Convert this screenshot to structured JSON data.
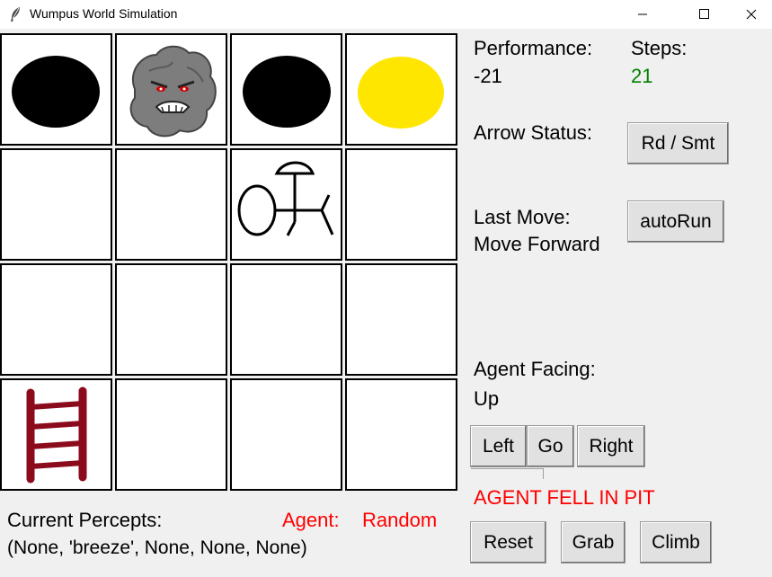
{
  "window": {
    "title": "Wumpus World Simulation",
    "controls": [
      "minimize-icon",
      "maximize-icon",
      "close-icon"
    ]
  },
  "grid": {
    "rows": 4,
    "cols": 4,
    "cells": [
      [
        "pit",
        "wumpus",
        "pit",
        "gold"
      ],
      [
        "empty",
        "empty",
        "agent",
        "empty"
      ],
      [
        "empty",
        "empty",
        "empty",
        "empty"
      ],
      [
        "ladder",
        "empty",
        "empty",
        "empty"
      ]
    ],
    "colors": {
      "pit": "#000000",
      "gold": "#ffe600",
      "ladder": "#8b0a1c",
      "wumpus": "#7d7d7d"
    }
  },
  "status": {
    "performance_label": "Performance:",
    "performance_value": "-21",
    "steps_label": "Steps:",
    "steps_value": "21",
    "arrow_label": "Arrow Status:",
    "last_move_label": "Last Move:",
    "last_move_value": "Move Forward",
    "facing_label": "Agent Facing:",
    "facing_value": "Up",
    "message": "AGENT FELL IN PIT",
    "colors": {
      "steps": "#008000",
      "message": "#ff0000",
      "agent": "#ff0000"
    }
  },
  "buttons": {
    "arrow_status": "Rd / Smt",
    "auto_run": "autoRun",
    "left": "Left",
    "go": "Go",
    "right": "Right",
    "reset": "Reset",
    "grab": "Grab",
    "climb": "Climb"
  },
  "percepts": {
    "label": "Current Percepts:",
    "value": "(None, 'breeze', None, None, None)",
    "agent_label": "Agent:",
    "agent_value": "Random"
  }
}
